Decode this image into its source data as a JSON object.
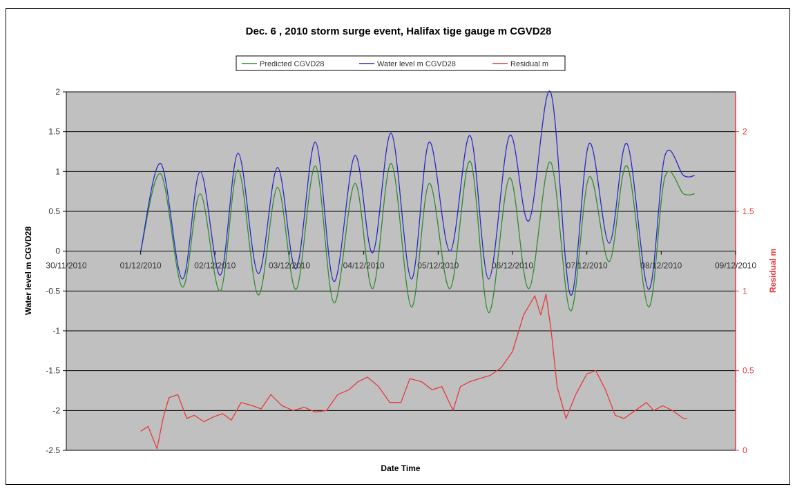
{
  "chart_data": {
    "type": "line",
    "title": "Dec. 6 , 2010 storm surge event, Halifax tige gauge m CGVD28",
    "xlabel": "Date Time",
    "ylabel": "Water level m CGVD28",
    "y2label": "Residual m",
    "x_ticks": [
      "30/11/2010",
      "01/12/2010",
      "02/12/2010",
      "03/12/2010",
      "04/12/2010",
      "05/12/2010",
      "06/12/2010",
      "07/12/2010",
      "08/12/2010",
      "09/12/2010"
    ],
    "y_ticks": [
      "2",
      "1.5",
      "1",
      "0.5",
      "0",
      "-0.5",
      "-1",
      "-1.5",
      "-2",
      "-2.5"
    ],
    "y2_ticks": [
      "2",
      "1.5",
      "1",
      "0.5",
      "0"
    ],
    "xlim_days": [
      0,
      9
    ],
    "ylim": [
      -2.5,
      2.0
    ],
    "y2lim": [
      0,
      2.25
    ],
    "grid": "horizontal",
    "plot_background": "#c0c0c0",
    "legend_position": "top",
    "series": [
      {
        "name": "Predicted CGVD28",
        "axis": "left",
        "color": "#2e8b2e",
        "x_days": [
          1.0,
          1.27,
          1.56,
          1.8,
          2.07,
          2.31,
          2.58,
          2.84,
          3.09,
          3.35,
          3.6,
          3.88,
          4.12,
          4.37,
          4.64,
          4.88,
          5.16,
          5.43,
          5.68,
          5.96,
          6.22,
          6.51,
          6.78,
          7.03,
          7.3,
          7.54,
          7.83,
          8.05,
          8.3,
          8.45
        ],
        "y": [
          0.0,
          0.97,
          -0.45,
          0.72,
          -0.5,
          1.02,
          -0.55,
          0.8,
          -0.48,
          1.07,
          -0.65,
          0.85,
          -0.47,
          1.1,
          -0.7,
          0.85,
          -0.47,
          1.13,
          -0.77,
          0.92,
          -0.47,
          1.12,
          -0.75,
          0.93,
          -0.13,
          1.07,
          -0.7,
          0.93,
          0.72,
          0.72
        ]
      },
      {
        "name": "Water level m CGVD28",
        "axis": "left",
        "color": "#2828c8",
        "x_days": [
          1.0,
          1.27,
          1.56,
          1.8,
          2.07,
          2.31,
          2.58,
          2.84,
          3.09,
          3.35,
          3.6,
          3.88,
          4.12,
          4.37,
          4.64,
          4.88,
          5.16,
          5.43,
          5.68,
          5.96,
          6.22,
          6.51,
          6.78,
          7.03,
          7.3,
          7.54,
          7.83,
          8.05,
          8.3,
          8.45
        ],
        "y": [
          0.0,
          1.1,
          -0.35,
          1.0,
          -0.3,
          1.23,
          -0.28,
          1.05,
          -0.22,
          1.37,
          -0.38,
          1.2,
          -0.02,
          1.48,
          -0.35,
          1.37,
          0.0,
          1.45,
          -0.35,
          1.45,
          0.38,
          2.0,
          -0.55,
          1.35,
          0.1,
          1.35,
          -0.48,
          1.2,
          0.95,
          0.95
        ]
      },
      {
        "name": "Residual m",
        "axis": "right",
        "color": "#e8383a",
        "x_days": [
          1.0,
          1.1,
          1.22,
          1.3,
          1.38,
          1.5,
          1.62,
          1.72,
          1.85,
          1.98,
          2.1,
          2.22,
          2.35,
          2.5,
          2.62,
          2.75,
          2.9,
          3.05,
          3.2,
          3.35,
          3.5,
          3.65,
          3.8,
          3.92,
          4.05,
          4.2,
          4.35,
          4.5,
          4.62,
          4.78,
          4.92,
          5.05,
          5.2,
          5.3,
          5.42,
          5.55,
          5.7,
          5.85,
          6.0,
          6.15,
          6.3,
          6.38,
          6.45,
          6.52,
          6.6,
          6.72,
          6.85,
          7.0,
          7.12,
          7.25,
          7.38,
          7.5,
          7.65,
          7.8,
          7.9,
          8.02,
          8.15,
          8.3,
          8.35
        ],
        "y": [
          0.12,
          0.15,
          0.01,
          0.2,
          0.33,
          0.35,
          0.2,
          0.22,
          0.18,
          0.21,
          0.23,
          0.19,
          0.3,
          0.28,
          0.26,
          0.35,
          0.28,
          0.25,
          0.27,
          0.24,
          0.25,
          0.35,
          0.38,
          0.43,
          0.46,
          0.4,
          0.3,
          0.3,
          0.45,
          0.43,
          0.38,
          0.4,
          0.25,
          0.4,
          0.43,
          0.45,
          0.47,
          0.52,
          0.62,
          0.85,
          0.97,
          0.85,
          0.98,
          0.75,
          0.4,
          0.2,
          0.35,
          0.48,
          0.5,
          0.38,
          0.22,
          0.2,
          0.25,
          0.3,
          0.25,
          0.28,
          0.25,
          0.2,
          0.2
        ]
      }
    ]
  }
}
